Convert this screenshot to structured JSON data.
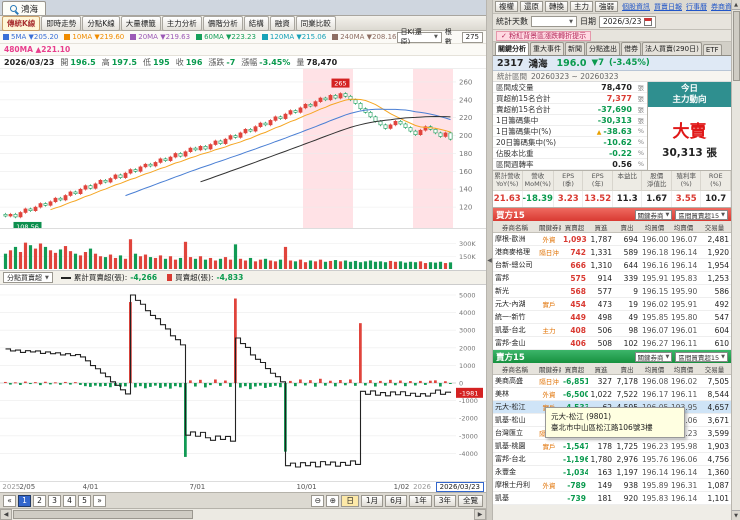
{
  "icons": {
    "splitter_left": "◀",
    "scroll_up": "▲",
    "scroll_down": "▼",
    "scroll_left": "◀",
    "scroll_right": "▶",
    "zoom_in": "⊕",
    "zoom_out": "⊖",
    "dropdown": "▼",
    "prev": "«",
    "next": "»"
  },
  "window": {
    "tab_title": "鴻海",
    "top_buttons": [
      "複權",
      "還原",
      "轉換",
      "主力",
      "強弱"
    ],
    "top_links": [
      "個股資訊",
      "買賣日報",
      "行事曆",
      "券商資訊"
    ],
    "stat_days_label": "統計天數",
    "date_label": "日期",
    "date_value": "2026/3/23",
    "pink_badge": "✓ 粉紅背景區漲跌轉折提示"
  },
  "left": {
    "tabs": [
      {
        "label": "傳統K線",
        "active": true
      },
      {
        "label": "即時走勢",
        "active": false
      },
      {
        "label": "分點K線",
        "active": false
      },
      {
        "label": "大量標籤",
        "active": false
      },
      {
        "label": "主力分析",
        "active": false
      },
      {
        "label": "價階分析",
        "active": false
      },
      {
        "label": "結構",
        "active": false
      },
      {
        "label": "融資",
        "active": false
      },
      {
        "label": "同業比較",
        "active": false
      }
    ],
    "ma_legend": [
      {
        "label": "5MA",
        "value": "▼205.20",
        "color": "#3a6fd8"
      },
      {
        "label": "10MA",
        "value": "▼219.60",
        "color": "#f08c00"
      },
      {
        "label": "20MA",
        "value": "▼219.63",
        "color": "#9b59b6"
      },
      {
        "label": "60MA",
        "value": "▼223.23",
        "color": "#16a05a"
      },
      {
        "label": "120MA",
        "value": "▼215.06",
        "color": "#17a2b8"
      },
      {
        "label": "240MA",
        "value": "▼208.16",
        "color": "#8d6e63"
      }
    ],
    "ma_legend2": {
      "label": "480MA",
      "value": "▲221.10",
      "color": "#e83e8c"
    },
    "kline_select": "日K(還原)",
    "bars_label": "根數",
    "bars_value": "275",
    "ohlc": [
      {
        "label": "",
        "value": "2026/03/23",
        "color": "#222"
      },
      {
        "label": "開",
        "value": "196.5",
        "color": "#0a9a4e"
      },
      {
        "label": "高",
        "value": "197.5",
        "color": "#0a9a4e"
      },
      {
        "label": "低",
        "value": "195",
        "color": "#0a9a4e"
      },
      {
        "label": "收",
        "value": "196",
        "color": "#0a9a4e"
      },
      {
        "label": "漲跌",
        "value": "-7",
        "color": "#0a9a4e"
      },
      {
        "label": "漲幅",
        "value": "-3.45%",
        "color": "#0a9a4e"
      },
      {
        "label": "量",
        "value": "78,470",
        "color": "#222"
      }
    ],
    "price_axis": [
      260,
      240,
      220,
      200,
      180,
      160,
      140,
      120
    ],
    "peak_label": "265",
    "low_label": "108.56",
    "vol_axis": [
      "300K",
      "150K"
    ],
    "flow_select": "分點買賣超",
    "flow_legend": [
      {
        "marker": "line",
        "color": "#222",
        "label": "累計買賣超(張)",
        "value": "-4,266",
        "value_color": "#0a9a4e"
      },
      {
        "marker": "bar",
        "color": "#d93a32",
        "label": "買賣超(張)",
        "value": "-4,833",
        "value_color": "#0a9a4e"
      }
    ],
    "flow_axis": [
      5000,
      4000,
      3000,
      2000,
      1000,
      0,
      -1000,
      -2000,
      -3000,
      -4000
    ],
    "flow_current": "-1981",
    "x_labels": [
      "2/05",
      "4/01",
      "7/01",
      "10/01",
      "1/02"
    ],
    "year_left": "2025",
    "year_right": "2026",
    "date_box": "2026/03/23",
    "pager": [
      "1",
      "2",
      "3",
      "4",
      "5"
    ],
    "range_buttons": [
      "日",
      "1月",
      "6月",
      "1年",
      "3年",
      "全覽"
    ],
    "chart": {
      "closes": [
        110,
        112,
        109,
        114,
        118,
        116,
        120,
        124,
        122,
        126,
        130,
        128,
        133,
        137,
        135,
        140,
        144,
        141,
        146,
        150,
        148,
        152,
        156,
        153,
        158,
        162,
        160,
        165,
        168,
        166,
        170,
        174,
        172,
        176,
        180,
        177,
        182,
        186,
        184,
        188,
        185,
        190,
        194,
        191,
        196,
        200,
        198,
        203,
        207,
        205,
        210,
        214,
        212,
        217,
        221,
        219,
        224,
        228,
        226,
        231,
        235,
        233,
        238,
        242,
        240,
        245,
        242,
        247,
        244,
        240,
        236,
        230,
        226,
        221,
        216,
        212,
        208,
        212,
        216,
        213,
        209,
        205,
        201,
        206,
        210,
        207,
        203,
        199,
        203,
        196
      ],
      "volumes": [
        180,
        220,
        260,
        200,
        310,
        280,
        240,
        300,
        260,
        220,
        190,
        230,
        270,
        210,
        180,
        160,
        200,
        240,
        180,
        150,
        140,
        170,
        130,
        160,
        120,
        350,
        180,
        150,
        170,
        140,
        130,
        160,
        120,
        150,
        110,
        130,
        320,
        140,
        120,
        150,
        110,
        130,
        100,
        120,
        140,
        110,
        290,
        120,
        100,
        130,
        90,
        110,
        120,
        100,
        90,
        110,
        260,
        100,
        90,
        110,
        80,
        100,
        90,
        110,
        85,
        95,
        105,
        90,
        100,
        85,
        95,
        80,
        90,
        100,
        85,
        90,
        80,
        95,
        85,
        90,
        75,
        85,
        80,
        90,
        70,
        80,
        75,
        85,
        70,
        78
      ],
      "net": [
        60,
        -90,
        40,
        -110,
        80,
        -60,
        50,
        -120,
        70,
        -80,
        40,
        -100,
        60,
        -90,
        50,
        -110,
        -180,
        -220,
        -150,
        -200,
        -170,
        -240,
        -160,
        -210,
        -190,
        4600,
        -250,
        -180,
        -300,
        -220,
        -150,
        -280,
        -200,
        -320,
        -180,
        -240,
        -4200,
        150,
        -200,
        180,
        -250,
        -120,
        200,
        -160,
        140,
        -220,
        4800,
        -260,
        -180,
        -350,
        -200,
        -150,
        -280,
        -220,
        -160,
        -240,
        -3900,
        120,
        -180,
        200,
        -140,
        160,
        -210,
        240,
        -150,
        130,
        -190,
        170,
        -130,
        200,
        -160,
        3400,
        -140,
        160,
        -200,
        120,
        -150,
        180,
        -130,
        140,
        -180,
        110,
        -140,
        120,
        -110,
        130,
        150,
        -200,
        100,
        -30
      ],
      "pink_bands": [
        [
          60,
          70
        ],
        [
          82,
          90
        ]
      ]
    }
  },
  "right": {
    "tabs": [
      {
        "label": "關鍵分析",
        "active": true
      },
      {
        "label": "重大事件",
        "active": false
      },
      {
        "label": "新聞",
        "active": false
      },
      {
        "label": "分點進出",
        "active": false
      },
      {
        "label": "借券",
        "active": false
      },
      {
        "label": "法人買賣(290日)",
        "active": false
      },
      {
        "label": "ETF",
        "active": false
      }
    ],
    "stock": {
      "id": "2317",
      "name": "鴻海",
      "price": "196.0",
      "change": "▼7",
      "change_pct": "(-3.45%)"
    },
    "range_label": "統計區間",
    "range_value": "20260323 ~ 20260323",
    "stats": [
      {
        "label": "區間成交量",
        "value": "78,470",
        "unit": "張",
        "color": "#222",
        "warn": false
      },
      {
        "label": "買超前15名合計",
        "value": "7,377",
        "unit": "張",
        "color": "#d93a32",
        "warn": false
      },
      {
        "label": "賣超前15名合計",
        "value": "-37,690",
        "unit": "張",
        "color": "#0a9a4e",
        "warn": false
      },
      {
        "label": "1日籌碼集中",
        "value": "-30,313",
        "unit": "張",
        "color": "#0a9a4e",
        "warn": false
      },
      {
        "label": "1日籌碼集中(%)",
        "value": "-38.63",
        "unit": "%",
        "color": "#0a9a4e",
        "warn": true
      },
      {
        "label": "20日籌碼集中(%)",
        "value": "-10.62",
        "unit": "%",
        "color": "#0a9a4e",
        "warn": false
      },
      {
        "label": "佔股本比重",
        "value": "-0.22",
        "unit": "%",
        "color": "#0a9a4e",
        "warn": false
      },
      {
        "label": "區間週轉率",
        "value": "0.56",
        "unit": "%",
        "color": "#222",
        "warn": false
      }
    ],
    "today": {
      "title_line1": "今日",
      "title_line2": "主力動向",
      "action": "大賣",
      "amount": "30,313 張"
    },
    "metrics": [
      {
        "h1": "累計營收",
        "h2": "YoY(%)",
        "value": "21.63",
        "color": "#d93a32"
      },
      {
        "h1": "營收",
        "h2": "MoM(%)",
        "value": "-18.39",
        "color": "#0a9a4e"
      },
      {
        "h1": "EPS",
        "h2": "(季)",
        "value": "3.23",
        "color": "#d93a32"
      },
      {
        "h1": "EPS",
        "h2": "(年)",
        "value": "13.52",
        "color": "#d93a32"
      },
      {
        "h1": "本益比",
        "h2": "",
        "value": "11.3",
        "color": "#222"
      },
      {
        "h1": "股價",
        "h2": "淨值比",
        "value": "1.67",
        "color": "#222"
      },
      {
        "h1": "殖利率",
        "h2": "(%)",
        "value": "3.55",
        "color": "#d93a32"
      },
      {
        "h1": "ROE",
        "h2": "(%)",
        "value": "10.7",
        "color": "#222"
      }
    ],
    "table_headers": [
      "券商名稱",
      "關鍵券商",
      "買賣超",
      "買進",
      "賣出",
      "均買價",
      "均賣價",
      "交易量"
    ],
    "buy": {
      "title": "買方15",
      "filter1": "關鍵券商",
      "filter2": "區間買賣超15",
      "rows": [
        [
          "摩根-歐洲",
          "外資",
          "1,093",
          "1,787",
          "694",
          "196.00",
          "196.07",
          "2,481"
        ],
        [
          "港商麥格理",
          "隔日沖",
          "742",
          "1,331",
          "589",
          "196.18",
          "196.14",
          "1,920"
        ],
        [
          "台新-總公司",
          "",
          "666",
          "1,310",
          "644",
          "196.16",
          "196.14",
          "1,954"
        ],
        [
          "富邦",
          "",
          "575",
          "914",
          "339",
          "195.91",
          "195.83",
          "1,253"
        ],
        [
          "新光",
          "",
          "568",
          "577",
          "9",
          "196.15",
          "195.90",
          "586"
        ],
        [
          "元大-內湖",
          "實戶",
          "454",
          "473",
          "19",
          "196.02",
          "195.91",
          "492"
        ],
        [
          "統一-新竹",
          "",
          "449",
          "498",
          "49",
          "195.85",
          "195.80",
          "547"
        ],
        [
          "凱基-台北",
          "主力",
          "408",
          "506",
          "98",
          "196.07",
          "196.01",
          "604"
        ],
        [
          "富邦-金山",
          "",
          "406",
          "508",
          "102",
          "196.27",
          "196.11",
          "610"
        ]
      ]
    },
    "sell": {
      "title": "賣方15",
      "filter1": "關鍵券商",
      "filter2": "區間買賣超15",
      "rows": [
        [
          "美商高盛",
          "隔日沖",
          "-6,851",
          "327",
          "7,178",
          "196.08",
          "196.02",
          "7,505"
        ],
        [
          "美林",
          "外資",
          "-6,500",
          "1,022",
          "7,522",
          "196.17",
          "196.11",
          "8,544"
        ],
        [
          "元大-松江",
          "實戶",
          "-4,533",
          "62",
          "4,595",
          "196.05",
          "193.95",
          "4,657"
        ],
        [
          "凱基-松山",
          "",
          "-2,891",
          "390",
          "3,281",
          "195.94",
          "196.06",
          "3,671"
        ],
        [
          "台灣匯立",
          "隔日沖",
          "-2,063",
          "768",
          "2,831",
          "195.93",
          "196.23",
          "3,599"
        ],
        [
          "凱基-桃園",
          "實戶",
          "-1,547",
          "178",
          "1,725",
          "196.23",
          "195.98",
          "1,903"
        ],
        [
          "富邦-台北",
          "",
          "-1,196",
          "1,780",
          "2,976",
          "195.76",
          "196.06",
          "4,756"
        ],
        [
          "永豐金",
          "",
          "-1,034",
          "163",
          "1,197",
          "196.14",
          "196.14",
          "1,360"
        ],
        [
          "摩根士丹利",
          "外資",
          "-789",
          "149",
          "938",
          "195.89",
          "196.31",
          "1,087"
        ],
        [
          "凱基",
          "",
          "-739",
          "181",
          "920",
          "195.83",
          "196.14",
          "1,101"
        ]
      ],
      "highlight_index": 2,
      "tooltip": {
        "line1": "元大-松江 (9801)",
        "line2": "臺北市中山區松江路106號3樓"
      }
    }
  }
}
